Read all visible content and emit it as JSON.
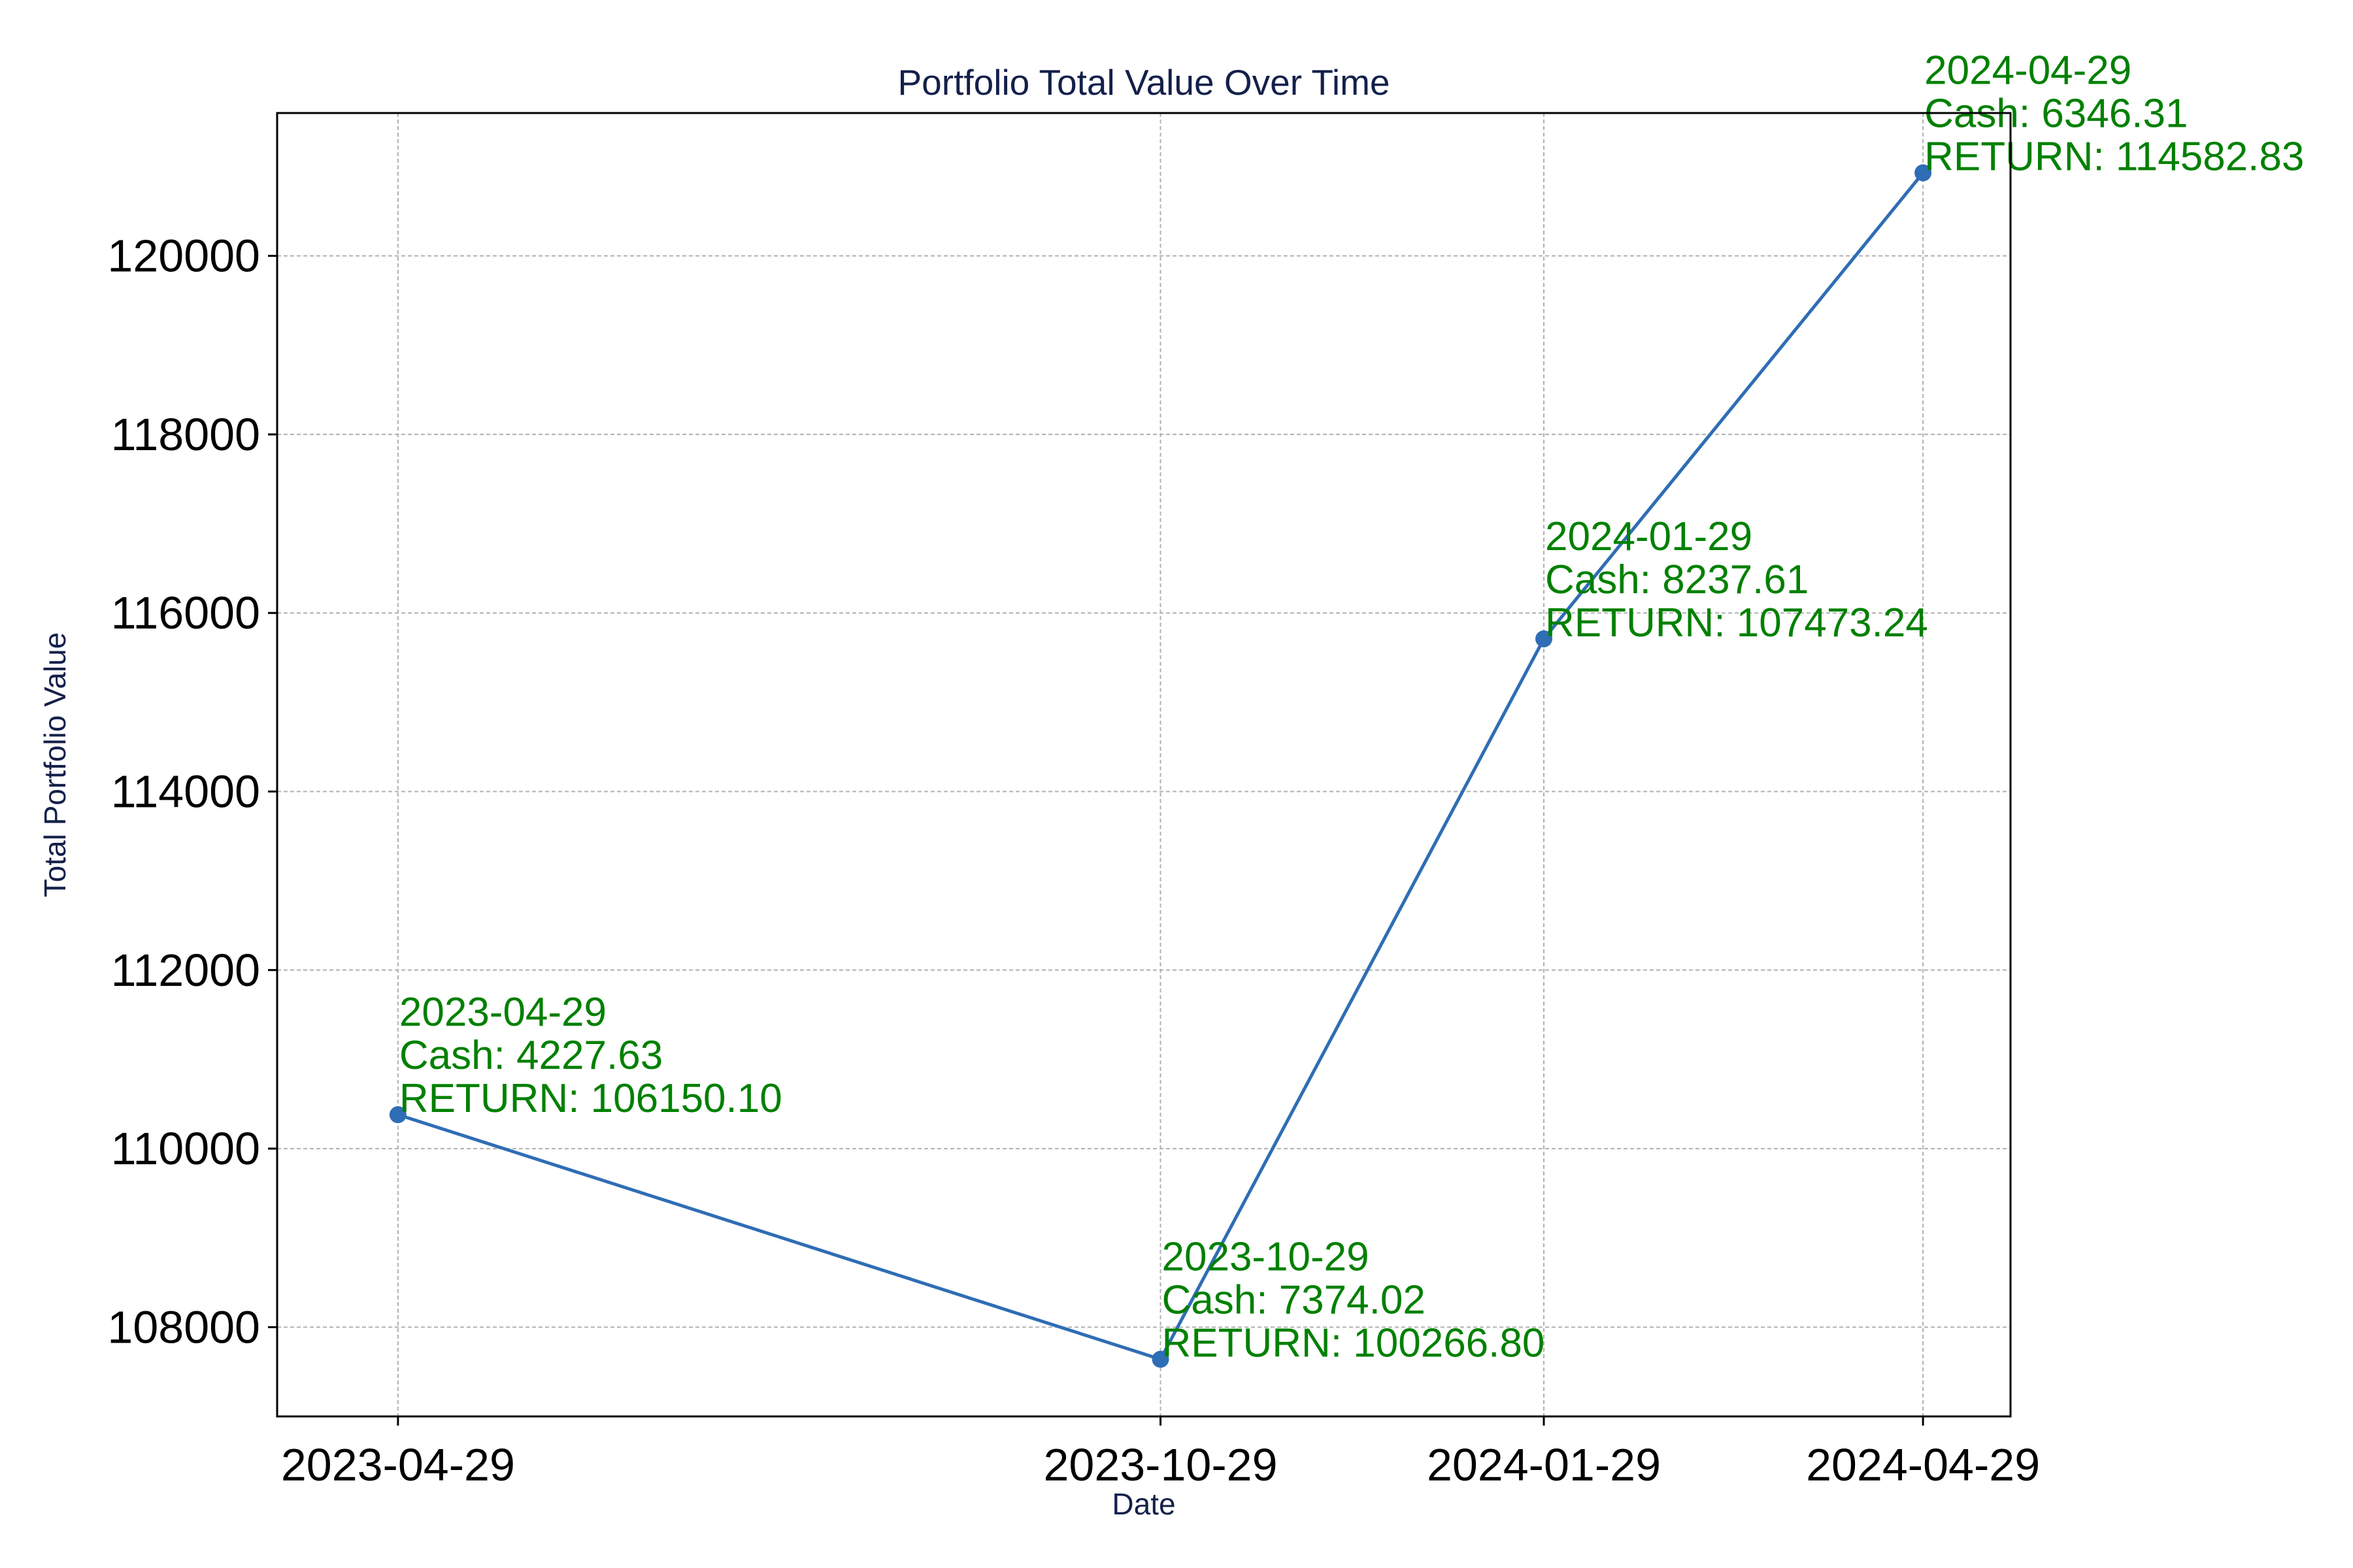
{
  "chart_data": {
    "type": "line",
    "title": "Portfolio Total Value Over Time",
    "xlabel": "Date",
    "ylabel": "Total Portfolio Value",
    "x_axis_kind": "date",
    "grid": true,
    "legend": null,
    "ylim": [
      107000,
      121600
    ],
    "xlim": [
      "2023-03-31",
      "2024-05-20"
    ],
    "x_ticks": [
      "2023-04-29",
      "2023-10-29",
      "2024-01-29",
      "2024-04-29"
    ],
    "y_ticks": [
      108000,
      110000,
      112000,
      114000,
      116000,
      118000,
      120000
    ],
    "y_tick_labels": [
      "108000",
      "110000",
      "112000",
      "114000",
      "116000",
      "118000",
      "120000"
    ],
    "series": [
      {
        "color": "#2f6db5",
        "points": [
          {
            "x": "2023-04-29",
            "y": 110380
          },
          {
            "x": "2023-10-29",
            "y": 107640
          },
          {
            "x": "2024-01-29",
            "y": 115710
          },
          {
            "x": "2024-04-29",
            "y": 120930
          }
        ]
      }
    ],
    "annotations": [
      {
        "x": "2023-04-29",
        "y": 110380,
        "lines": [
          "2023-04-29",
          "Cash: 4227.63",
          "RETURN: 106150.10"
        ]
      },
      {
        "x": "2023-10-29",
        "y": 107640,
        "lines": [
          "2023-10-29",
          "Cash: 7374.02",
          "RETURN: 100266.80"
        ]
      },
      {
        "x": "2024-01-29",
        "y": 115710,
        "lines": [
          "2024-01-29",
          "Cash: 8237.61",
          "RETURN: 107473.24"
        ]
      },
      {
        "x": "2024-04-29",
        "y": 120930,
        "lines": [
          "2024-04-29",
          "Cash: 6346.31",
          "RETURN: 114582.83"
        ]
      }
    ],
    "colors": {
      "line": "#2f6db5",
      "annotation": "#008000",
      "title": "#14204a",
      "grid": "#b0b0b0"
    }
  }
}
